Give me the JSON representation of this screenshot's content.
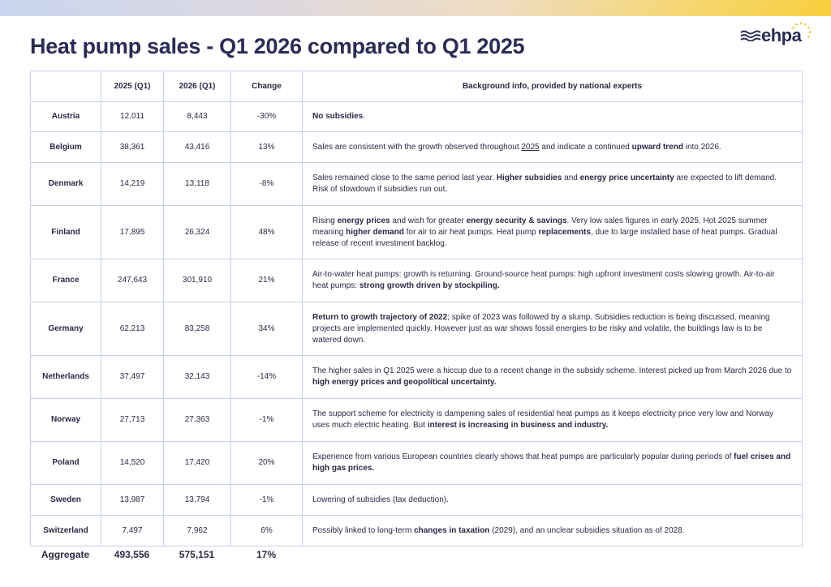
{
  "header": {
    "title": "Heat pump sales - Q1 2026 compared to Q1 2025",
    "logo_text": "ehpa"
  },
  "colors": {
    "border": "#c6d0e6",
    "text": "#2a2a45",
    "title": "#2b2b55",
    "logo_star": "#f2c230"
  },
  "table": {
    "headers": [
      "",
      "2025 (Q1)",
      "2026 (Q1)",
      "Change",
      "Background info, provided by national experts"
    ],
    "rows": [
      {
        "country": "Austria",
        "q1_2025": "12,011",
        "q1_2026": "8,443",
        "change": "-30%",
        "info": [
          [
            "No subsidies",
            "b"
          ],
          [
            ".",
            ""
          ]
        ]
      },
      {
        "country": "Belgium",
        "q1_2025": "38,361",
        "q1_2026": "43,416",
        "change": "13%",
        "info": [
          [
            "Sales are consistent with the growth observed throughout ",
            ""
          ],
          [
            "2025",
            "u"
          ],
          [
            " and indicate a continued ",
            ""
          ],
          [
            "upward trend",
            "b"
          ],
          [
            " into 2026.",
            ""
          ]
        ]
      },
      {
        "country": "Denmark",
        "q1_2025": "14,219",
        "q1_2026": "13,118",
        "change": "-8%",
        "info": [
          [
            "Sales remained close to the same period last year. ",
            ""
          ],
          [
            "Higher subsidies",
            "b"
          ],
          [
            " and ",
            ""
          ],
          [
            "energy price uncertainty",
            "b"
          ],
          [
            " are expected to lift demand. Risk of slowdown if subsidies run out.",
            ""
          ]
        ]
      },
      {
        "country": "Finland",
        "q1_2025": "17,895",
        "q1_2026": "26,324",
        "change": "48%",
        "info": [
          [
            "Rising ",
            ""
          ],
          [
            "energy prices",
            "b"
          ],
          [
            " and wish for greater ",
            ""
          ],
          [
            "energy security & savings",
            "b"
          ],
          [
            ". Very low sales figures in early 2025. Hot 2025 summer meaning ",
            ""
          ],
          [
            "higher demand",
            "b"
          ],
          [
            " for air to air heat pumps. Heat pump ",
            ""
          ],
          [
            "replacements",
            "b"
          ],
          [
            ", due to large installed base of heat pumps. Gradual release of recent investment backlog.",
            ""
          ]
        ]
      },
      {
        "country": "France",
        "q1_2025": "247,643",
        "q1_2026": "301,910",
        "change": "21%",
        "info": [
          [
            "Air-to-water heat pumps: growth is returning. Ground-source heat pumps: high upfront investment costs slowing growth. Air-to-air heat pumps: ",
            ""
          ],
          [
            "strong growth driven by stockpiling.",
            "b"
          ]
        ]
      },
      {
        "country": "Germany",
        "q1_2025": "62,213",
        "q1_2026": "83,258",
        "change": "34%",
        "info": [
          [
            "Return to growth trajectory of 2022",
            "b"
          ],
          [
            "; spike of 2023 was followed by a slump. Subsidies reduction is being discussed, meaning projects are implemented quickly. However just as war shows fossil energies to be risky and volatile, the buildings law is to be watered down.",
            ""
          ]
        ]
      },
      {
        "country": "Netherlands",
        "q1_2025": "37,497",
        "q1_2026": "32,143",
        "change": "-14%",
        "info": [
          [
            "The higher sales in Q1 2025 were a hiccup due to a recent change in the subsidy scheme. Interest picked up from March 2026 due to ",
            ""
          ],
          [
            "high energy prices and geopolitical uncertainty.",
            "b"
          ]
        ]
      },
      {
        "country": "Norway",
        "q1_2025": "27,713",
        "q1_2026": "27,363",
        "change": "-1%",
        "info": [
          [
            "The support scheme for electricity is dampening sales of residential heat pumps as it keeps electricity price very low and Norway uses much electric heating. But ",
            ""
          ],
          [
            "interest is increasing in business and industry.",
            "b"
          ]
        ]
      },
      {
        "country": "Poland",
        "q1_2025": "14,520",
        "q1_2026": "17,420",
        "change": "20%",
        "info": [
          [
            "Experience from various European countries clearly shows that heat pumps are particularly popular during periods of ",
            ""
          ],
          [
            "fuel crises and high gas prices.",
            "b"
          ]
        ]
      },
      {
        "country": "Sweden",
        "q1_2025": "13,987",
        "q1_2026": "13,794",
        "change": "-1%",
        "info": [
          [
            "Lowering of subsidies (tax deduction).",
            ""
          ]
        ]
      },
      {
        "country": "Switzerland",
        "q1_2025": "7,497",
        "q1_2026": "7,962",
        "change": "6%",
        "info": [
          [
            "Possibly linked to long-term ",
            ""
          ],
          [
            "changes in taxation",
            "b"
          ],
          [
            " (2029), and an unclear subsidies situation as of 2028.",
            ""
          ]
        ]
      }
    ]
  },
  "aggregate": {
    "label": "Aggregate",
    "q1_2025": "493,556",
    "q1_2026": "575,151",
    "change": "17%"
  }
}
